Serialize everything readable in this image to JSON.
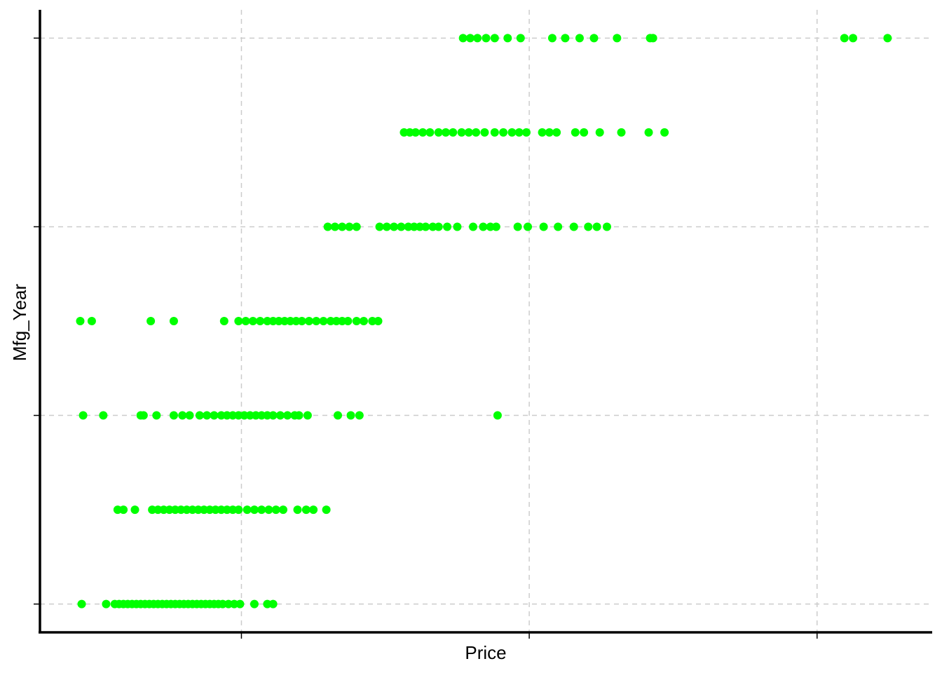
{
  "chart_data": {
    "type": "scatter",
    "title": "",
    "xlabel": "Price",
    "ylabel": "Mfg_Year",
    "x_tick_labels_visible": false,
    "y_tick_labels_visible": false,
    "grid": true,
    "grid_style": "dashed",
    "point_color": "#00ff00",
    "xlim": [
      0,
      31000
    ],
    "ylim": [
      -0.3,
      6.3
    ],
    "x_gridlines": [
      7000,
      17000,
      27000
    ],
    "y_gridlines": [
      0,
      2,
      4,
      6
    ],
    "series": [
      {
        "points": [
          [
            1450,
            0
          ],
          [
            2300,
            0
          ],
          [
            2600,
            0
          ],
          [
            2750,
            0
          ],
          [
            2900,
            0
          ],
          [
            3050,
            0
          ],
          [
            3200,
            0
          ],
          [
            3350,
            0
          ],
          [
            3500,
            0
          ],
          [
            3650,
            0
          ],
          [
            3800,
            0
          ],
          [
            3950,
            0
          ],
          [
            4100,
            0
          ],
          [
            4250,
            0
          ],
          [
            4400,
            0
          ],
          [
            4550,
            0
          ],
          [
            4700,
            0
          ],
          [
            4850,
            0
          ],
          [
            5000,
            0
          ],
          [
            5150,
            0
          ],
          [
            5300,
            0
          ],
          [
            5450,
            0
          ],
          [
            5600,
            0
          ],
          [
            5750,
            0
          ],
          [
            5900,
            0
          ],
          [
            6050,
            0
          ],
          [
            6200,
            0
          ],
          [
            6350,
            0
          ],
          [
            6550,
            0
          ],
          [
            6750,
            0
          ],
          [
            6950,
            0
          ],
          [
            7450,
            0
          ],
          [
            7900,
            0
          ],
          [
            8100,
            0
          ],
          [
            2700,
            1
          ],
          [
            2900,
            1
          ],
          [
            3300,
            1
          ],
          [
            3900,
            1
          ],
          [
            4100,
            1
          ],
          [
            4300,
            1
          ],
          [
            4500,
            1
          ],
          [
            4700,
            1
          ],
          [
            4900,
            1
          ],
          [
            5100,
            1
          ],
          [
            5300,
            1
          ],
          [
            5500,
            1
          ],
          [
            5700,
            1
          ],
          [
            5900,
            1
          ],
          [
            6100,
            1
          ],
          [
            6300,
            1
          ],
          [
            6500,
            1
          ],
          [
            6700,
            1
          ],
          [
            6900,
            1
          ],
          [
            7200,
            1
          ],
          [
            7450,
            1
          ],
          [
            7700,
            1
          ],
          [
            7950,
            1
          ],
          [
            8200,
            1
          ],
          [
            8450,
            1
          ],
          [
            8950,
            1
          ],
          [
            9250,
            1
          ],
          [
            9500,
            1
          ],
          [
            9950,
            1
          ],
          [
            1500,
            2
          ],
          [
            2200,
            2
          ],
          [
            3500,
            2
          ],
          [
            3600,
            2
          ],
          [
            4050,
            2
          ],
          [
            4650,
            2
          ],
          [
            4950,
            2
          ],
          [
            5200,
            2
          ],
          [
            5550,
            2
          ],
          [
            5800,
            2
          ],
          [
            6050,
            2
          ],
          [
            6300,
            2
          ],
          [
            6500,
            2
          ],
          [
            6700,
            2
          ],
          [
            6900,
            2
          ],
          [
            7100,
            2
          ],
          [
            7300,
            2
          ],
          [
            7500,
            2
          ],
          [
            7700,
            2
          ],
          [
            7900,
            2
          ],
          [
            8100,
            2
          ],
          [
            8350,
            2
          ],
          [
            8600,
            2
          ],
          [
            8850,
            2
          ],
          [
            9000,
            2
          ],
          [
            9300,
            2
          ],
          [
            10350,
            2
          ],
          [
            10800,
            2
          ],
          [
            11100,
            2
          ],
          [
            15900,
            2
          ],
          [
            1400,
            3
          ],
          [
            1800,
            3
          ],
          [
            3850,
            3
          ],
          [
            4650,
            3
          ],
          [
            6400,
            3
          ],
          [
            6900,
            3
          ],
          [
            7150,
            3
          ],
          [
            7400,
            3
          ],
          [
            7650,
            3
          ],
          [
            7900,
            3
          ],
          [
            8100,
            3
          ],
          [
            8300,
            3
          ],
          [
            8500,
            3
          ],
          [
            8700,
            3
          ],
          [
            8900,
            3
          ],
          [
            9100,
            3
          ],
          [
            9350,
            3
          ],
          [
            9600,
            3
          ],
          [
            9850,
            3
          ],
          [
            10100,
            3
          ],
          [
            10300,
            3
          ],
          [
            10500,
            3
          ],
          [
            10700,
            3
          ],
          [
            11000,
            3
          ],
          [
            11250,
            3
          ],
          [
            11550,
            3
          ],
          [
            11750,
            3
          ],
          [
            10000,
            4
          ],
          [
            10250,
            4
          ],
          [
            10500,
            4
          ],
          [
            10750,
            4
          ],
          [
            11000,
            4
          ],
          [
            11800,
            4
          ],
          [
            12050,
            4
          ],
          [
            12300,
            4
          ],
          [
            12550,
            4
          ],
          [
            12800,
            4
          ],
          [
            13000,
            4
          ],
          [
            13200,
            4
          ],
          [
            13400,
            4
          ],
          [
            13650,
            4
          ],
          [
            13850,
            4
          ],
          [
            14150,
            4
          ],
          [
            14500,
            4
          ],
          [
            15050,
            4
          ],
          [
            15400,
            4
          ],
          [
            15650,
            4
          ],
          [
            15850,
            4
          ],
          [
            16600,
            4
          ],
          [
            16950,
            4
          ],
          [
            17500,
            4
          ],
          [
            18000,
            4
          ],
          [
            18550,
            4
          ],
          [
            19050,
            4
          ],
          [
            19350,
            4
          ],
          [
            19700,
            4
          ],
          [
            12650,
            5
          ],
          [
            12850,
            5
          ],
          [
            13050,
            5
          ],
          [
            13300,
            5
          ],
          [
            13550,
            5
          ],
          [
            13850,
            5
          ],
          [
            14100,
            5
          ],
          [
            14350,
            5
          ],
          [
            14650,
            5
          ],
          [
            14900,
            5
          ],
          [
            15150,
            5
          ],
          [
            15450,
            5
          ],
          [
            15800,
            5
          ],
          [
            16100,
            5
          ],
          [
            16400,
            5
          ],
          [
            16650,
            5
          ],
          [
            16900,
            5
          ],
          [
            17450,
            5
          ],
          [
            17700,
            5
          ],
          [
            17950,
            5
          ],
          [
            18600,
            5
          ],
          [
            18900,
            5
          ],
          [
            19450,
            5
          ],
          [
            20200,
            5
          ],
          [
            21150,
            5
          ],
          [
            21700,
            5
          ],
          [
            14700,
            6
          ],
          [
            14950,
            6
          ],
          [
            15200,
            6
          ],
          [
            15500,
            6
          ],
          [
            15800,
            6
          ],
          [
            16250,
            6
          ],
          [
            16700,
            6
          ],
          [
            17800,
            6
          ],
          [
            18250,
            6
          ],
          [
            18750,
            6
          ],
          [
            19250,
            6
          ],
          [
            20050,
            6
          ],
          [
            21200,
            6
          ],
          [
            21300,
            6
          ],
          [
            27950,
            6
          ],
          [
            28250,
            6
          ],
          [
            29450,
            6
          ]
        ]
      }
    ]
  }
}
